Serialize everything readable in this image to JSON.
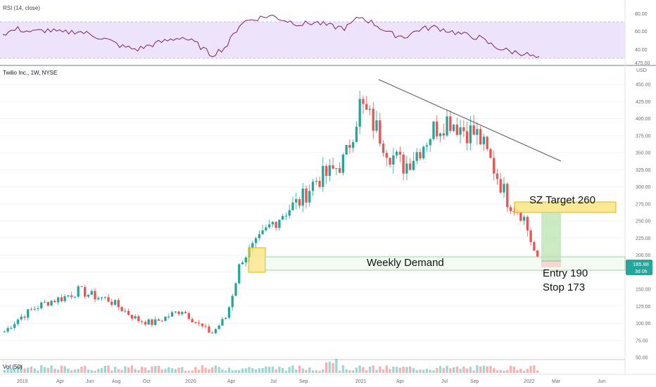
{
  "rsi_pane": {
    "label": "RSI (14, close)",
    "levels": [
      "80.00",
      "60.00",
      "40.00"
    ],
    "partial_level": "475.00",
    "band_color": "#ede4fb",
    "line_color": "#7e1f6e"
  },
  "price_pane": {
    "symbol_label": "Twilio Inc., 1W, NYSE",
    "currency": "USD",
    "price_ticks": [
      "450.00",
      "425.00",
      "400.00",
      "375.00",
      "350.00",
      "325.00",
      "300.00",
      "275.00",
      "250.00",
      "225.00",
      "200.00",
      "175.00",
      "150.00",
      "125.00",
      "100.00",
      "75.00",
      "50.00"
    ],
    "current_price": "185.88",
    "countdown": "3d 0h",
    "up_color": "#26a69a",
    "down_color": "#ef5350",
    "price_tag_color": "#26a69a"
  },
  "volume_pane": {
    "label": "Vol (50)"
  },
  "time_axis": [
    "2019",
    "Apr",
    "Jun",
    "Aug",
    "Oct",
    "2020",
    "Apr",
    "Jul",
    "Sep",
    "2021",
    "Apr",
    "Jul",
    "Sep",
    "2022",
    "Mar",
    "Jun"
  ],
  "annotations": {
    "target": "SZ Target 260",
    "demand": "Weekly Demand",
    "entry": "Entry 190",
    "stop": "Stop 173",
    "zone_color": "#f7d94c"
  },
  "chart_data": {
    "type": "candlestick",
    "title": "Twilio Inc., 1W, NYSE",
    "ylabel": "USD",
    "ylim": [
      45,
      478
    ],
    "x": [
      "2019-01",
      "2019-02",
      "2019-03",
      "2019-04",
      "2019-05",
      "2019-06",
      "2019-07",
      "2019-08",
      "2019-09",
      "2019-10",
      "2019-11",
      "2019-12",
      "2020-01",
      "2020-02",
      "2020-03",
      "2020-04",
      "2020-05",
      "2020-06",
      "2020-07",
      "2020-08",
      "2020-09",
      "2020-10",
      "2020-11",
      "2020-12",
      "2021-01",
      "2021-02",
      "2021-03",
      "2021-04",
      "2021-05",
      "2021-06",
      "2021-07",
      "2021-08",
      "2021-09",
      "2021-10",
      "2021-11",
      "2021-12",
      "2022-01"
    ],
    "close": [
      88,
      108,
      122,
      132,
      138,
      148,
      140,
      135,
      120,
      105,
      100,
      110,
      120,
      100,
      85,
      110,
      195,
      215,
      245,
      265,
      280,
      310,
      320,
      340,
      420,
      390,
      350,
      330,
      355,
      385,
      400,
      385,
      375,
      330,
      280,
      260,
      190
    ],
    "indicators": {
      "rsi_14": {
        "ylim": [
          30,
          85
        ],
        "levels": [
          70,
          30
        ],
        "values": [
          58,
          63,
          60,
          62,
          59,
          61,
          57,
          52,
          45,
          42,
          47,
          51,
          55,
          48,
          36,
          45,
          70,
          74,
          77,
          72,
          68,
          70,
          66,
          64,
          76,
          68,
          58,
          55,
          63,
          65,
          61,
          57,
          54,
          45,
          40,
          38,
          32
        ]
      },
      "volume": {
        "label": "Vol (50)"
      }
    },
    "drawings": {
      "trendline": {
        "from": [
          "2021-02",
          455
        ],
        "to": [
          "2022-01",
          340
        ]
      },
      "demand_zone": {
        "x_from": "2020-05",
        "x_to": "2022-02",
        "low": 175,
        "high": 198,
        "label": "Weekly Demand"
      },
      "yellow_box_demand": {
        "x_from": "2020-05",
        "x_to": "2020-06",
        "low": 175,
        "high": 212
      },
      "target_zone": {
        "x_from": "2021-12",
        "x_to": "2022-03",
        "low": 260,
        "high": 278,
        "label": "SZ Target 260"
      },
      "long_position": {
        "entry": 190,
        "stop": 173,
        "target": 260
      }
    }
  }
}
